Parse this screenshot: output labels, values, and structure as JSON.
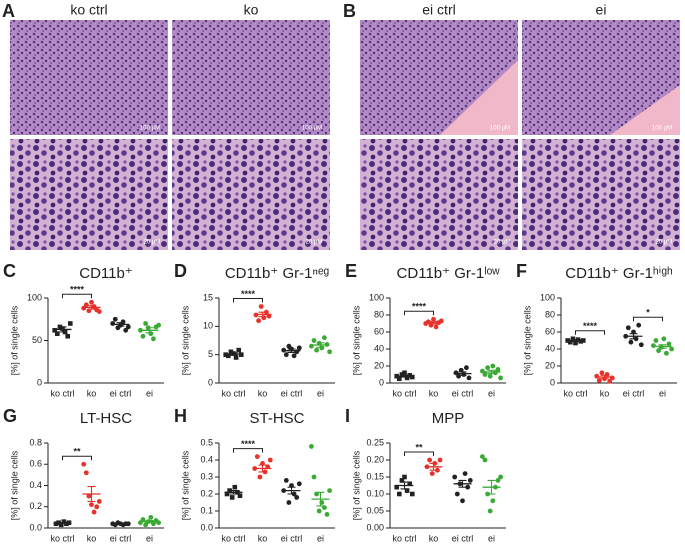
{
  "figure": {
    "panels": [
      {
        "letter": "A",
        "labels": [
          "ko ctrl",
          "ko"
        ]
      },
      {
        "letter": "B",
        "labels": [
          "ei ctrl",
          "ei"
        ]
      }
    ],
    "scale_top": "100 µM",
    "scale_bottom": "20 µM"
  },
  "chart_data": [
    {
      "type": "dot",
      "letter": "C",
      "title": "CD11b⁺",
      "ylabel": "[%] of single cells",
      "ylim": [
        0,
        100
      ],
      "yticks": [
        0,
        50,
        100
      ],
      "groups": [
        {
          "name": "ko ctrl",
          "color": "#222222",
          "marker": "square",
          "values": [
            62,
            58,
            66,
            64,
            60,
            55,
            70
          ],
          "mean": 63,
          "sem": 3
        },
        {
          "name": "ko",
          "color": "#e8312a",
          "marker": "circle",
          "values": [
            88,
            92,
            85,
            95,
            90,
            86,
            84
          ],
          "mean": 89,
          "sem": 2
        },
        {
          "name": "ei ctrl",
          "color": "#222222",
          "marker": "circle",
          "values": [
            70,
            75,
            65,
            68,
            72,
            62,
            66
          ],
          "mean": 69,
          "sem": 2
        },
        {
          "name": "ei",
          "color": "#3aaa35",
          "marker": "circle",
          "values": [
            62,
            55,
            70,
            65,
            58,
            52,
            66,
            68
          ],
          "mean": 62,
          "sem": 3
        }
      ],
      "significance": [
        {
          "pair": [
            0,
            1
          ],
          "label": "****"
        }
      ]
    },
    {
      "type": "dot",
      "letter": "D",
      "title": "CD11b⁺ Gr-1ⁿᵉᵍ",
      "ylabel": "[%] of single cells",
      "ylim": [
        0,
        15
      ],
      "yticks": [
        0,
        5,
        10,
        15
      ],
      "groups": [
        {
          "name": "ko ctrl",
          "color": "#222222",
          "marker": "square",
          "values": [
            5,
            4.8,
            5.5,
            5.2,
            4.5,
            5.8,
            5
          ],
          "mean": 5.1,
          "sem": 0.2
        },
        {
          "name": "ko",
          "color": "#e8312a",
          "marker": "circle",
          "values": [
            12,
            11,
            13.5,
            11.5,
            12.5,
            11.8
          ],
          "mean": 12.1,
          "sem": 0.4
        },
        {
          "name": "ei ctrl",
          "color": "#222222",
          "marker": "circle",
          "values": [
            5.8,
            5,
            6.5,
            6,
            4.8,
            5.5,
            6.2
          ],
          "mean": 5.7,
          "sem": 0.3
        },
        {
          "name": "ei",
          "color": "#3aaa35",
          "marker": "circle",
          "values": [
            6.5,
            7.5,
            5.8,
            7,
            6.2,
            8,
            6.8,
            5.5
          ],
          "mean": 6.7,
          "sem": 0.4
        }
      ],
      "significance": [
        {
          "pair": [
            0,
            1
          ],
          "label": "****"
        }
      ]
    },
    {
      "type": "dot",
      "letter": "E",
      "title": "CD11b⁺ Gr-1ˡᵒʷ",
      "ylabel": "[%] of single cells",
      "ylim": [
        0,
        100
      ],
      "yticks": [
        0,
        20,
        40,
        60,
        80,
        100
      ],
      "groups": [
        {
          "name": "ko ctrl",
          "color": "#222222",
          "marker": "square",
          "values": [
            8,
            5,
            10,
            12,
            6,
            9,
            7
          ],
          "mean": 8,
          "sem": 1
        },
        {
          "name": "ko",
          "color": "#e8312a",
          "marker": "circle",
          "values": [
            70,
            72,
            68,
            75,
            66,
            71,
            73
          ],
          "mean": 71,
          "sem": 1.5
        },
        {
          "name": "ei ctrl",
          "color": "#222222",
          "marker": "circle",
          "values": [
            12,
            8,
            15,
            10,
            18,
            6
          ],
          "mean": 11,
          "sem": 2
        },
        {
          "name": "ei",
          "color": "#3aaa35",
          "marker": "circle",
          "values": [
            14,
            10,
            18,
            8,
            20,
            12,
            16,
            6
          ],
          "mean": 13,
          "sem": 2
        }
      ],
      "significance": [
        {
          "pair": [
            0,
            1
          ],
          "label": "****"
        }
      ]
    },
    {
      "type": "dot",
      "letter": "F",
      "title": "CD11b⁺ Gr-1ʰⁱᵍʰ",
      "ylabel": "[%] of single cells",
      "ylim": [
        0,
        100
      ],
      "yticks": [
        0,
        20,
        40,
        60,
        80,
        100
      ],
      "groups": [
        {
          "name": "ko ctrl",
          "color": "#222222",
          "marker": "square",
          "values": [
            50,
            48,
            52,
            47,
            51,
            49,
            50
          ],
          "mean": 50,
          "sem": 1
        },
        {
          "name": "ko",
          "color": "#e8312a",
          "marker": "circle",
          "values": [
            8,
            3,
            12,
            5,
            10,
            2,
            6
          ],
          "mean": 7,
          "sem": 2
        },
        {
          "name": "ei ctrl",
          "color": "#222222",
          "marker": "circle",
          "values": [
            55,
            65,
            48,
            60,
            52,
            68,
            45
          ],
          "mean": 55,
          "sem": 3
        },
        {
          "name": "ei",
          "color": "#3aaa35",
          "marker": "circle",
          "values": [
            44,
            50,
            38,
            42,
            52,
            35,
            46,
            40
          ],
          "mean": 43,
          "sem": 2
        }
      ],
      "significance": [
        {
          "pair": [
            0,
            1
          ],
          "label": "****"
        },
        {
          "pair": [
            2,
            3
          ],
          "label": "*"
        }
      ]
    },
    {
      "type": "dot",
      "letter": "G",
      "title": "LT-HSC",
      "ylabel": "[%] of single cells",
      "ylim": [
        0,
        0.8
      ],
      "yticks": [
        {
          "value": 0,
          "label": "0.0"
        },
        0.2,
        0.4,
        0.6,
        0.8
      ],
      "groups": [
        {
          "name": "ko ctrl",
          "color": "#222222",
          "marker": "square",
          "values": [
            0.04,
            0.05,
            0.03,
            0.06,
            0.04,
            0.05
          ],
          "mean": 0.045,
          "sem": 0.005
        },
        {
          "name": "ko",
          "color": "#e8312a",
          "marker": "circle",
          "values": [
            0.6,
            0.52,
            0.3,
            0.22,
            0.15,
            0.2,
            0.25
          ],
          "mean": 0.32,
          "sem": 0.07
        },
        {
          "name": "ei ctrl",
          "color": "#222222",
          "marker": "circle",
          "values": [
            0.04,
            0.03,
            0.05,
            0.04,
            0.03,
            0.04,
            0.04
          ],
          "mean": 0.04,
          "sem": 0.003
        },
        {
          "name": "ei",
          "color": "#3aaa35",
          "marker": "circle",
          "values": [
            0.05,
            0.08,
            0.03,
            0.06,
            0.1,
            0.04,
            0.07,
            0.05
          ],
          "mean": 0.06,
          "sem": 0.01
        }
      ],
      "significance": [
        {
          "pair": [
            0,
            1
          ],
          "label": "**"
        }
      ]
    },
    {
      "type": "dot",
      "letter": "H",
      "title": "ST-HSC",
      "ylabel": "[%] of single cells",
      "ylim": [
        0,
        0.5
      ],
      "yticks": [
        {
          "value": 0,
          "label": "0.0"
        },
        0.1,
        0.2,
        0.3,
        0.4,
        0.5
      ],
      "groups": [
        {
          "name": "ko ctrl",
          "color": "#222222",
          "marker": "square",
          "values": [
            0.2,
            0.22,
            0.18,
            0.24,
            0.21,
            0.19
          ],
          "mean": 0.21,
          "sem": 0.01
        },
        {
          "name": "ko",
          "color": "#e8312a",
          "marker": "circle",
          "values": [
            0.35,
            0.42,
            0.3,
            0.38,
            0.33,
            0.36,
            0.4
          ],
          "mean": 0.35,
          "sem": 0.02
        },
        {
          "name": "ei ctrl",
          "color": "#222222",
          "marker": "circle",
          "values": [
            0.22,
            0.28,
            0.15,
            0.25,
            0.2,
            0.18,
            0.26
          ],
          "mean": 0.22,
          "sem": 0.02
        },
        {
          "name": "ei",
          "color": "#3aaa35",
          "marker": "circle",
          "values": [
            0.48,
            0.3,
            0.2,
            0.1,
            0.15,
            0.12,
            0.08,
            0.22
          ],
          "mean": 0.17,
          "sem": 0.04
        }
      ],
      "significance": [
        {
          "pair": [
            0,
            1
          ],
          "label": "****"
        }
      ]
    },
    {
      "type": "dot",
      "letter": "I",
      "title": "MPP",
      "ylabel": "[%] of single cells",
      "ylim": [
        0,
        0.25
      ],
      "yticks": [
        {
          "value": 0,
          "label": "0.00"
        },
        {
          "value": 0.05,
          "label": "0.05"
        },
        {
          "value": 0.1,
          "label": "0.10"
        },
        {
          "value": 0.15,
          "label": "0.15"
        },
        {
          "value": 0.2,
          "label": "0.20"
        },
        {
          "value": 0.25,
          "label": "0.25"
        }
      ],
      "groups": [
        {
          "name": "ko ctrl",
          "color": "#222222",
          "marker": "square",
          "values": [
            0.12,
            0.1,
            0.14,
            0.15,
            0.11,
            0.13,
            0.1
          ],
          "mean": 0.125,
          "sem": 0.01
        },
        {
          "name": "ko",
          "color": "#e8312a",
          "marker": "circle",
          "values": [
            0.18,
            0.2,
            0.16,
            0.19,
            0.17,
            0.2
          ],
          "mean": 0.18,
          "sem": 0.01
        },
        {
          "name": "ei ctrl",
          "color": "#222222",
          "marker": "circle",
          "values": [
            0.15,
            0.1,
            0.13,
            0.08,
            0.16,
            0.12,
            0.14
          ],
          "mean": 0.13,
          "sem": 0.01
        },
        {
          "name": "ei",
          "color": "#3aaa35",
          "marker": "circle",
          "values": [
            0.21,
            0.2,
            0.1,
            0.05,
            0.08,
            0.12,
            0.14,
            0.15
          ],
          "mean": 0.12,
          "sem": 0.02
        }
      ],
      "significance": [
        {
          "pair": [
            0,
            1
          ],
          "label": "**"
        }
      ]
    }
  ]
}
